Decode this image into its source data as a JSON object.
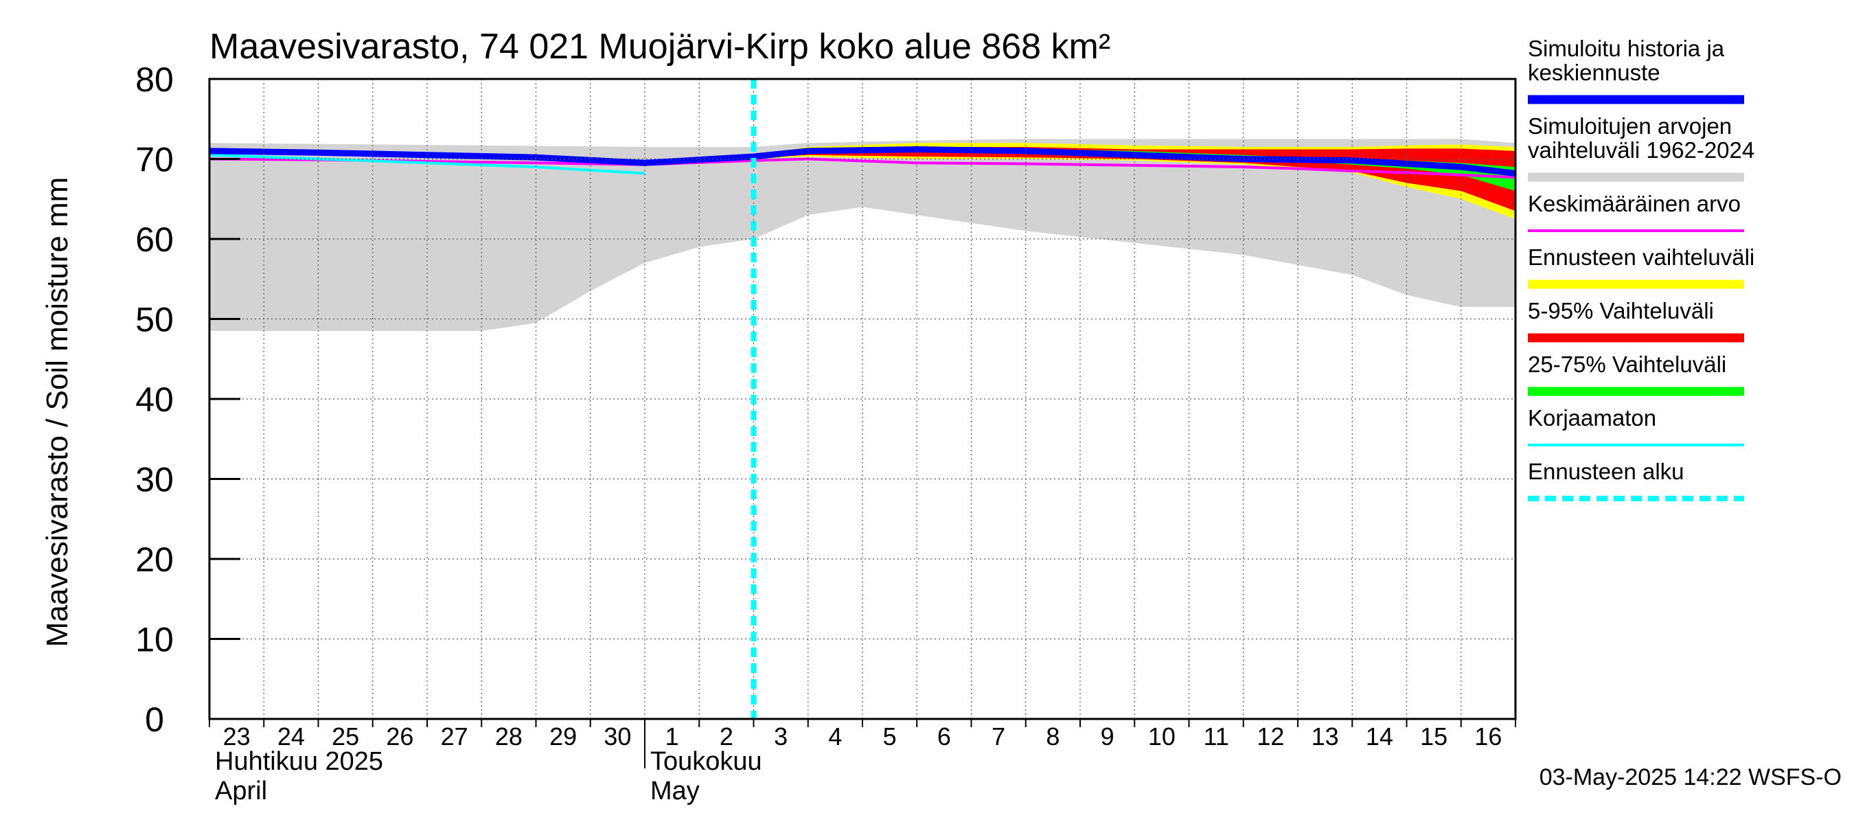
{
  "chart_data": {
    "type": "area",
    "title": "Maavesivarasto, 74 021 Muojärvi-Kirp koko alue 868 km²",
    "ylabel": "Maavesivarasto / Soil moisture   mm",
    "ylim": [
      0,
      80
    ],
    "yticks": [
      0,
      10,
      20,
      30,
      40,
      50,
      60,
      70,
      80
    ],
    "x_days": 24,
    "day_labels": [
      "23",
      "24",
      "25",
      "26",
      "27",
      "28",
      "29",
      "30",
      "1",
      "2",
      "3",
      "4",
      "5",
      "6",
      "7",
      "8",
      "9",
      "10",
      "11",
      "12",
      "13",
      "14",
      "15",
      "16"
    ],
    "month_labels": [
      {
        "fi": "Huhtikuu  2025",
        "en": "April",
        "day_index": 0
      },
      {
        "fi": "Toukokuu",
        "en": "May",
        "day_index": 8
      }
    ],
    "forecast_start_day": 10,
    "timestamp": "03-May-2025 14:22 WSFS-O",
    "legend": [
      {
        "key": "history",
        "label": "Simuloitu historia ja keskiennuste",
        "color": "#0000ff",
        "style": "solid"
      },
      {
        "key": "range",
        "label": "Simuloitujen arvojen vaihteluväli 1962-2024",
        "color": "#d3d3d3",
        "style": "solid"
      },
      {
        "key": "mean",
        "label": "Keskimääräinen arvo",
        "color": "#ff00ff",
        "style": "solid"
      },
      {
        "key": "fc_range",
        "label": "Ennusteen vaihteluväli",
        "color": "#ffff00",
        "style": "solid"
      },
      {
        "key": "p5_95",
        "label": "5-95% Vaihteluväli",
        "color": "#ff0000",
        "style": "solid"
      },
      {
        "key": "p25_75",
        "label": "25-75% Vaihteluväli",
        "color": "#00ff00",
        "style": "solid"
      },
      {
        "key": "uncorrected",
        "label": "Korjaamaton",
        "color": "#00ffff",
        "style": "solid"
      },
      {
        "key": "fc_start",
        "label": "Ennusteen alku",
        "color": "#00ffff",
        "style": "dashed"
      }
    ],
    "series": {
      "hist_range_upper": {
        "x": [
          0,
          8,
          10,
          11,
          13,
          15,
          17,
          19,
          21,
          23,
          24
        ],
        "y": [
          72,
          71.5,
          71.5,
          72,
          72.3,
          72.5,
          72.5,
          72.5,
          72.5,
          72.5,
          72
        ]
      },
      "hist_range_lower": {
        "x": [
          0,
          4,
          5,
          6,
          7,
          8,
          9,
          10,
          11,
          12,
          13,
          15,
          17,
          19,
          21,
          22,
          23,
          24
        ],
        "y": [
          48.5,
          48.5,
          48.5,
          49.5,
          53.5,
          57,
          59,
          60,
          63,
          64,
          63,
          61,
          59.5,
          58,
          55.5,
          53,
          51.5,
          51.5
        ]
      },
      "fc_range_upper": {
        "x": [
          10,
          11,
          13,
          15,
          17,
          19,
          20,
          21,
          22,
          23,
          24
        ],
        "y": [
          70.5,
          71.5,
          72,
          72,
          71.7,
          71.5,
          71.5,
          71.5,
          71.7,
          71.8,
          71.5
        ]
      },
      "fc_range_lower": {
        "x": [
          10,
          11,
          13,
          15,
          17,
          19,
          20,
          21,
          22,
          23,
          24
        ],
        "y": [
          70,
          70.3,
          70,
          70,
          69.8,
          69.3,
          68.8,
          68.3,
          66.5,
          65,
          62.5
        ]
      },
      "p5_95_upper": {
        "x": [
          10,
          11,
          13,
          15,
          17,
          18,
          19,
          20,
          21,
          22,
          23,
          24
        ],
        "y": [
          70.3,
          71,
          71.5,
          71.5,
          71.2,
          71.2,
          71.2,
          71.2,
          71.2,
          71.3,
          71.3,
          71
        ]
      },
      "p5_95_lower": {
        "x": [
          10,
          11,
          13,
          15,
          17,
          19,
          20,
          21,
          22,
          23,
          24
        ],
        "y": [
          70.1,
          70.5,
          70.3,
          70.2,
          70,
          69.5,
          69,
          68.5,
          67,
          66,
          63.5
        ]
      },
      "p25_75_upper": {
        "x": [
          10,
          11,
          13,
          15,
          17,
          19,
          20,
          21,
          22,
          23,
          24
        ],
        "y": [
          70.3,
          71,
          71.3,
          71.3,
          71,
          70.5,
          70.2,
          70,
          69.8,
          69.5,
          69
        ]
      },
      "p25_75_lower": {
        "x": [
          10,
          11,
          13,
          15,
          17,
          19,
          20,
          21,
          22,
          23,
          24
        ],
        "y": [
          70.2,
          70.8,
          71,
          71,
          70.7,
          70,
          69.7,
          69.3,
          68.8,
          68,
          66
        ]
      },
      "mean": {
        "x": [
          0,
          2,
          4,
          6,
          8,
          10,
          11,
          13,
          15,
          17,
          19,
          20,
          21,
          22,
          23,
          24
        ],
        "y": [
          70,
          69.9,
          69.7,
          69.5,
          69.3,
          69.8,
          70,
          69.5,
          69.4,
          69.2,
          69,
          68.8,
          68.5,
          68.3,
          68,
          67.7
        ]
      },
      "uncorrected": {
        "x": [
          0,
          2,
          4,
          6,
          8
        ],
        "y": [
          70.5,
          70,
          69.5,
          69,
          68.2
        ]
      },
      "history": {
        "x": [
          0,
          2,
          4,
          6,
          8,
          10,
          11,
          13,
          15,
          17,
          19,
          21,
          23,
          24
        ],
        "y": [
          71,
          70.8,
          70.5,
          70.2,
          69.5,
          70.3,
          71,
          71.2,
          71,
          70.5,
          70,
          69.8,
          69,
          68.2
        ]
      }
    }
  }
}
